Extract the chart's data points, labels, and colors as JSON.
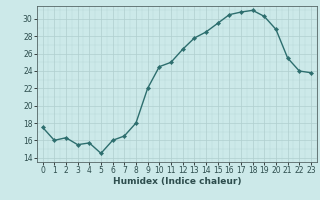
{
  "x": [
    0,
    1,
    2,
    3,
    4,
    5,
    6,
    7,
    8,
    9,
    10,
    11,
    12,
    13,
    14,
    15,
    16,
    17,
    18,
    19,
    20,
    21,
    22,
    23
  ],
  "y": [
    17.5,
    16.0,
    16.3,
    15.5,
    15.7,
    14.5,
    16.0,
    16.5,
    18.0,
    22.0,
    24.5,
    25.0,
    26.5,
    27.8,
    28.5,
    29.5,
    30.5,
    30.8,
    31.0,
    30.3,
    28.8,
    25.5,
    24.0,
    23.8
  ],
  "line_color": "#2d6e6e",
  "marker": "D",
  "marker_size": 2.2,
  "bg_color": "#cce9e9",
  "grid_color": "#b0cfcf",
  "xlabel": "Humidex (Indice chaleur)",
  "xlim": [
    -0.5,
    23.5
  ],
  "ylim": [
    13.5,
    31.5
  ],
  "yticks": [
    14,
    16,
    18,
    20,
    22,
    24,
    26,
    28,
    30
  ],
  "xticks": [
    0,
    1,
    2,
    3,
    4,
    5,
    6,
    7,
    8,
    9,
    10,
    11,
    12,
    13,
    14,
    15,
    16,
    17,
    18,
    19,
    20,
    21,
    22,
    23
  ],
  "tick_fontsize": 5.5,
  "xlabel_fontsize": 6.5,
  "linewidth": 1.0
}
